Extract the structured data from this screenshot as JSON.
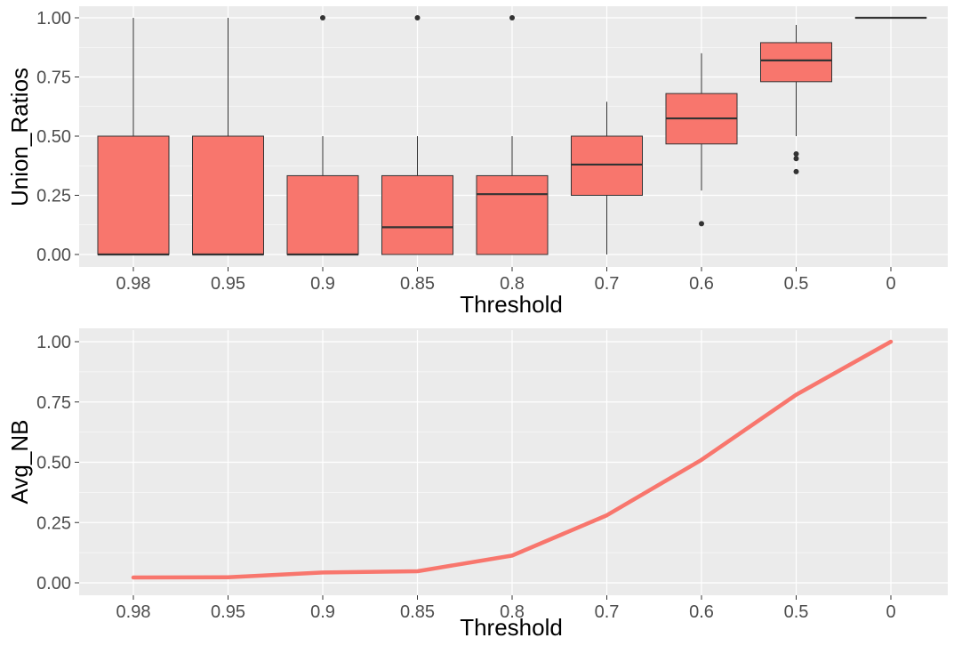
{
  "chart_data": [
    {
      "type": "boxplot",
      "xlabel": "Threshold",
      "ylabel": "Union_Ratios",
      "ylim": [
        0,
        1
      ],
      "yticks": [
        "0.00",
        "0.25",
        "0.50",
        "0.75",
        "1.00"
      ],
      "categories": [
        "0.98",
        "0.95",
        "0.9",
        "0.85",
        "0.8",
        "0.7",
        "0.6",
        "0.5",
        "0"
      ],
      "boxes": [
        {
          "category": "0.98",
          "q1": 0.0,
          "median": 0.0,
          "q3": 0.5,
          "whisker_low": 0.0,
          "whisker_high": 1.0,
          "outliers": []
        },
        {
          "category": "0.95",
          "q1": 0.0,
          "median": 0.0,
          "q3": 0.5,
          "whisker_low": 0.0,
          "whisker_high": 1.0,
          "outliers": []
        },
        {
          "category": "0.9",
          "q1": 0.0,
          "median": 0.0,
          "q3": 0.333,
          "whisker_low": 0.0,
          "whisker_high": 0.5,
          "outliers": [
            1.0
          ]
        },
        {
          "category": "0.85",
          "q1": 0.0,
          "median": 0.115,
          "q3": 0.333,
          "whisker_low": 0.0,
          "whisker_high": 0.5,
          "outliers": [
            1.0
          ]
        },
        {
          "category": "0.8",
          "q1": 0.0,
          "median": 0.255,
          "q3": 0.333,
          "whisker_low": 0.0,
          "whisker_high": 0.5,
          "outliers": [
            1.0
          ]
        },
        {
          "category": "0.7",
          "q1": 0.25,
          "median": 0.38,
          "q3": 0.5,
          "whisker_low": 0.0,
          "whisker_high": 0.645,
          "outliers": []
        },
        {
          "category": "0.6",
          "q1": 0.467,
          "median": 0.575,
          "q3": 0.68,
          "whisker_low": 0.27,
          "whisker_high": 0.85,
          "outliers": [
            0.13
          ]
        },
        {
          "category": "0.5",
          "q1": 0.73,
          "median": 0.82,
          "q3": 0.895,
          "whisker_low": 0.5,
          "whisker_high": 0.97,
          "outliers": [
            0.425,
            0.405,
            0.35
          ]
        },
        {
          "category": "0",
          "q1": 1.0,
          "median": 1.0,
          "q3": 1.0,
          "whisker_low": 1.0,
          "whisker_high": 1.0,
          "outliers": []
        }
      ],
      "fill_color": "#F8766D",
      "line_color": "#333333",
      "panel_bg": "#EBEBEB",
      "grid": true
    },
    {
      "type": "line",
      "xlabel": "Threshold",
      "ylabel": "Avg_NB",
      "ylim": [
        0,
        1
      ],
      "yticks": [
        "0.00",
        "0.25",
        "0.50",
        "0.75",
        "1.00"
      ],
      "categories": [
        "0.98",
        "0.95",
        "0.9",
        "0.85",
        "0.8",
        "0.7",
        "0.6",
        "0.5",
        "0"
      ],
      "values": [
        0.022,
        0.023,
        0.043,
        0.048,
        0.113,
        0.28,
        0.51,
        0.78,
        1.0
      ],
      "line_color": "#F8766D",
      "panel_bg": "#EBEBEB",
      "grid": true
    }
  ]
}
